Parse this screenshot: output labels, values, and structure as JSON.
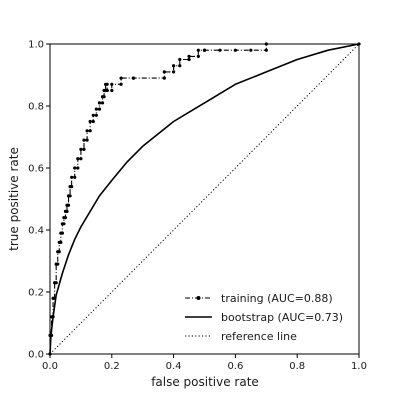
{
  "chart_data": {
    "type": "line",
    "title": "",
    "xlabel": "false positive rate",
    "ylabel": "true positive rate",
    "xlim": [
      0,
      1
    ],
    "ylim": [
      0,
      1
    ],
    "xticks": [
      0.0,
      0.2,
      0.4,
      0.6,
      0.8,
      1.0
    ],
    "yticks": [
      0.0,
      0.2,
      0.4,
      0.6,
      0.8,
      1.0
    ],
    "xtick_labels": [
      "0.0",
      "0.2",
      "0.4",
      "0.6",
      "0.8",
      "1.0"
    ],
    "ytick_labels": [
      "0.0",
      "0.2",
      "0.4",
      "0.6",
      "0.8",
      "1.0"
    ],
    "grid": false,
    "legend_position": "bottom-right",
    "series": [
      {
        "name": "training (AUC=0.88)",
        "style": "dashdot-markers",
        "color": "#000000",
        "x": [
          0.0,
          0.0,
          0.005,
          0.005,
          0.01,
          0.01,
          0.015,
          0.015,
          0.02,
          0.02,
          0.025,
          0.025,
          0.03,
          0.03,
          0.035,
          0.035,
          0.04,
          0.04,
          0.045,
          0.045,
          0.05,
          0.05,
          0.055,
          0.055,
          0.06,
          0.06,
          0.065,
          0.065,
          0.07,
          0.07,
          0.08,
          0.08,
          0.09,
          0.09,
          0.1,
          0.1,
          0.11,
          0.11,
          0.12,
          0.12,
          0.13,
          0.13,
          0.14,
          0.14,
          0.15,
          0.15,
          0.16,
          0.16,
          0.17,
          0.17,
          0.175,
          0.175,
          0.18,
          0.18,
          0.185,
          0.185,
          0.2,
          0.2,
          0.23,
          0.23,
          0.27,
          0.27,
          0.37,
          0.37,
          0.4,
          0.4,
          0.42,
          0.42,
          0.45,
          0.45,
          0.48,
          0.48,
          0.5,
          0.5,
          0.55,
          0.6,
          0.65,
          0.7,
          0.7,
          1.0
        ],
        "y": [
          0.0,
          0.06,
          0.06,
          0.12,
          0.12,
          0.18,
          0.18,
          0.23,
          0.23,
          0.29,
          0.29,
          0.33,
          0.33,
          0.36,
          0.36,
          0.39,
          0.39,
          0.42,
          0.42,
          0.44,
          0.44,
          0.46,
          0.46,
          0.48,
          0.48,
          0.51,
          0.51,
          0.54,
          0.54,
          0.57,
          0.57,
          0.6,
          0.6,
          0.63,
          0.63,
          0.66,
          0.66,
          0.69,
          0.69,
          0.72,
          0.72,
          0.75,
          0.75,
          0.77,
          0.77,
          0.79,
          0.79,
          0.81,
          0.81,
          0.83,
          0.83,
          0.85,
          0.85,
          0.87,
          0.87,
          0.85,
          0.85,
          0.87,
          0.87,
          0.89,
          0.89,
          0.89,
          0.89,
          0.91,
          0.91,
          0.93,
          0.93,
          0.95,
          0.95,
          0.96,
          0.96,
          0.98,
          0.98,
          0.98,
          0.98,
          0.98,
          0.98,
          0.98,
          1.0,
          1.0
        ]
      },
      {
        "name": "bootstrap (AUC=0.73)",
        "style": "solid",
        "color": "#000000",
        "x": [
          0.0,
          0.003,
          0.01,
          0.02,
          0.04,
          0.06,
          0.08,
          0.1,
          0.13,
          0.16,
          0.2,
          0.25,
          0.3,
          0.35,
          0.4,
          0.45,
          0.5,
          0.6,
          0.7,
          0.8,
          0.9,
          1.0
        ],
        "y": [
          0.0,
          0.06,
          0.12,
          0.19,
          0.26,
          0.32,
          0.37,
          0.41,
          0.46,
          0.51,
          0.56,
          0.62,
          0.67,
          0.71,
          0.75,
          0.78,
          0.81,
          0.87,
          0.91,
          0.95,
          0.98,
          1.0
        ]
      },
      {
        "name": "reference line",
        "style": "dotted",
        "color": "#000000",
        "x": [
          0.0,
          1.0
        ],
        "y": [
          0.0,
          1.0
        ]
      }
    ]
  }
}
